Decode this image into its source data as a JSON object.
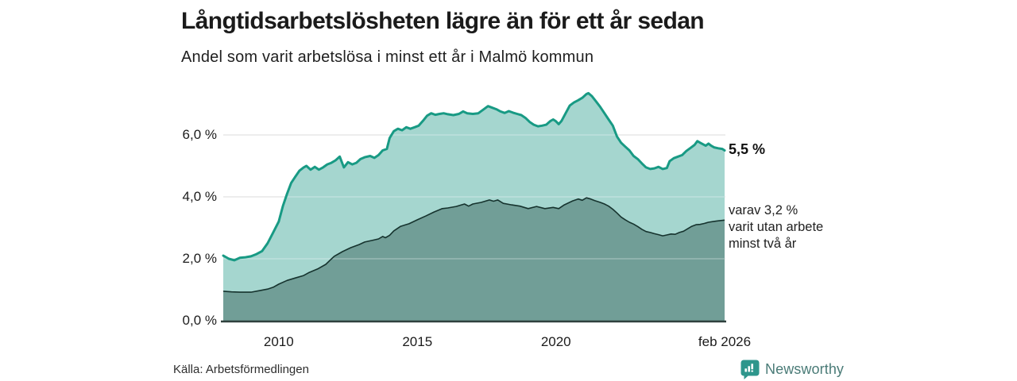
{
  "header": {
    "title": "Långtidsarbetslösheten lägre än för ett år sedan",
    "subtitle": "Andel som varit arbetslösa i minst ett år i Malmö kommun"
  },
  "annotations": {
    "end_total": "5,5 %",
    "end_sub_lines": [
      "varav 3,2 %",
      "varit utan arbete",
      "minst två år"
    ]
  },
  "footer": {
    "source": "Källa: Arbetsförmedlingen",
    "brand": "Newsworthy"
  },
  "colors": {
    "line_total": "#189a84",
    "fill_total": "#a5d6cf",
    "line_two_year": "#16332e",
    "fill_two_year": "#719e97",
    "grid": "#d8d8d8",
    "grid_over_fill": "rgba(255,255,255,0.35)",
    "axis": "#2f403d",
    "brand_teal": "#2e968c",
    "brand_text": "#4a7b77"
  },
  "chart_data": {
    "type": "area",
    "title": "Långtidsarbetslösheten lägre än för ett år sedan",
    "subtitle": "Andel som varit arbetslösa i minst ett år i Malmö kommun",
    "source": "Källa: Arbetsförmedlingen",
    "xlim": [
      2008.0,
      2026.083
    ],
    "ylim": [
      0,
      7.6
    ],
    "grid": true,
    "legend": "none",
    "x_ticks": [
      {
        "x": 2010,
        "label": "2010"
      },
      {
        "x": 2015,
        "label": "2015"
      },
      {
        "x": 2020,
        "label": "2020"
      },
      {
        "x": 2026.083,
        "label": "feb 2026"
      }
    ],
    "y_ticks": [
      {
        "y": 0,
        "label": "0,0 %"
      },
      {
        "y": 2,
        "label": "2,0 %"
      },
      {
        "y": 4,
        "label": "4,0 %"
      },
      {
        "y": 6,
        "label": "6,0 %"
      }
    ],
    "series": [
      {
        "name": "Andel arbetslösa minst ett år",
        "end_value": 5.5,
        "end_label": "5,5 %",
        "points": [
          [
            2008.0,
            2.1
          ],
          [
            2008.2,
            2.0
          ],
          [
            2008.4,
            1.95
          ],
          [
            2008.6,
            2.03
          ],
          [
            2008.8,
            2.05
          ],
          [
            2009.0,
            2.08
          ],
          [
            2009.2,
            2.15
          ],
          [
            2009.4,
            2.25
          ],
          [
            2009.6,
            2.5
          ],
          [
            2009.8,
            2.85
          ],
          [
            2010.0,
            3.2
          ],
          [
            2010.15,
            3.7
          ],
          [
            2010.3,
            4.1
          ],
          [
            2010.45,
            4.45
          ],
          [
            2010.6,
            4.65
          ],
          [
            2010.75,
            4.85
          ],
          [
            2010.9,
            4.95
          ],
          [
            2011.0,
            5.0
          ],
          [
            2011.15,
            4.88
          ],
          [
            2011.3,
            4.97
          ],
          [
            2011.45,
            4.88
          ],
          [
            2011.6,
            4.95
          ],
          [
            2011.75,
            5.05
          ],
          [
            2011.9,
            5.1
          ],
          [
            2012.05,
            5.18
          ],
          [
            2012.2,
            5.3
          ],
          [
            2012.35,
            4.95
          ],
          [
            2012.5,
            5.12
          ],
          [
            2012.65,
            5.05
          ],
          [
            2012.8,
            5.1
          ],
          [
            2012.95,
            5.22
          ],
          [
            2013.1,
            5.28
          ],
          [
            2013.3,
            5.32
          ],
          [
            2013.45,
            5.26
          ],
          [
            2013.6,
            5.35
          ],
          [
            2013.75,
            5.5
          ],
          [
            2013.9,
            5.55
          ],
          [
            2014.0,
            5.9
          ],
          [
            2014.15,
            6.12
          ],
          [
            2014.3,
            6.2
          ],
          [
            2014.45,
            6.15
          ],
          [
            2014.6,
            6.25
          ],
          [
            2014.75,
            6.2
          ],
          [
            2014.9,
            6.25
          ],
          [
            2015.05,
            6.3
          ],
          [
            2015.2,
            6.45
          ],
          [
            2015.35,
            6.62
          ],
          [
            2015.5,
            6.7
          ],
          [
            2015.65,
            6.65
          ],
          [
            2015.8,
            6.68
          ],
          [
            2015.95,
            6.7
          ],
          [
            2016.1,
            6.67
          ],
          [
            2016.3,
            6.64
          ],
          [
            2016.5,
            6.68
          ],
          [
            2016.65,
            6.76
          ],
          [
            2016.8,
            6.7
          ],
          [
            2017.0,
            6.68
          ],
          [
            2017.2,
            6.7
          ],
          [
            2017.4,
            6.83
          ],
          [
            2017.55,
            6.93
          ],
          [
            2017.7,
            6.88
          ],
          [
            2017.85,
            6.83
          ],
          [
            2018.0,
            6.76
          ],
          [
            2018.15,
            6.71
          ],
          [
            2018.3,
            6.77
          ],
          [
            2018.45,
            6.72
          ],
          [
            2018.6,
            6.68
          ],
          [
            2018.75,
            6.64
          ],
          [
            2018.9,
            6.55
          ],
          [
            2019.05,
            6.42
          ],
          [
            2019.2,
            6.33
          ],
          [
            2019.35,
            6.28
          ],
          [
            2019.5,
            6.3
          ],
          [
            2019.65,
            6.33
          ],
          [
            2019.8,
            6.45
          ],
          [
            2019.9,
            6.5
          ],
          [
            2020.0,
            6.44
          ],
          [
            2020.1,
            6.35
          ],
          [
            2020.2,
            6.45
          ],
          [
            2020.35,
            6.7
          ],
          [
            2020.5,
            6.95
          ],
          [
            2020.65,
            7.05
          ],
          [
            2020.8,
            7.12
          ],
          [
            2020.95,
            7.2
          ],
          [
            2021.1,
            7.32
          ],
          [
            2021.17,
            7.35
          ],
          [
            2021.3,
            7.25
          ],
          [
            2021.45,
            7.08
          ],
          [
            2021.6,
            6.9
          ],
          [
            2021.75,
            6.7
          ],
          [
            2021.9,
            6.5
          ],
          [
            2022.05,
            6.3
          ],
          [
            2022.2,
            5.95
          ],
          [
            2022.35,
            5.75
          ],
          [
            2022.5,
            5.62
          ],
          [
            2022.65,
            5.5
          ],
          [
            2022.8,
            5.32
          ],
          [
            2022.95,
            5.22
          ],
          [
            2023.1,
            5.08
          ],
          [
            2023.25,
            4.95
          ],
          [
            2023.4,
            4.9
          ],
          [
            2023.55,
            4.92
          ],
          [
            2023.7,
            4.97
          ],
          [
            2023.85,
            4.9
          ],
          [
            2024.0,
            4.93
          ],
          [
            2024.1,
            5.15
          ],
          [
            2024.25,
            5.25
          ],
          [
            2024.4,
            5.3
          ],
          [
            2024.55,
            5.35
          ],
          [
            2024.7,
            5.48
          ],
          [
            2024.85,
            5.58
          ],
          [
            2025.0,
            5.68
          ],
          [
            2025.1,
            5.8
          ],
          [
            2025.2,
            5.75
          ],
          [
            2025.3,
            5.7
          ],
          [
            2025.4,
            5.65
          ],
          [
            2025.5,
            5.72
          ],
          [
            2025.6,
            5.65
          ],
          [
            2025.7,
            5.6
          ],
          [
            2025.85,
            5.57
          ],
          [
            2026.0,
            5.55
          ],
          [
            2026.083,
            5.5
          ]
        ]
      },
      {
        "name": "varav utan arbete minst två år",
        "end_value": 3.2,
        "end_label": "varav 3,2 % varit utan arbete minst två år",
        "points": [
          [
            2008.0,
            0.95
          ],
          [
            2008.3,
            0.93
          ],
          [
            2008.6,
            0.92
          ],
          [
            2009.0,
            0.92
          ],
          [
            2009.3,
            0.97
          ],
          [
            2009.6,
            1.02
          ],
          [
            2009.8,
            1.08
          ],
          [
            2010.0,
            1.18
          ],
          [
            2010.3,
            1.3
          ],
          [
            2010.6,
            1.38
          ],
          [
            2010.9,
            1.46
          ],
          [
            2011.1,
            1.56
          ],
          [
            2011.4,
            1.67
          ],
          [
            2011.7,
            1.82
          ],
          [
            2011.85,
            1.95
          ],
          [
            2012.0,
            2.08
          ],
          [
            2012.3,
            2.23
          ],
          [
            2012.6,
            2.36
          ],
          [
            2012.9,
            2.46
          ],
          [
            2013.1,
            2.54
          ],
          [
            2013.4,
            2.6
          ],
          [
            2013.6,
            2.64
          ],
          [
            2013.75,
            2.72
          ],
          [
            2013.85,
            2.68
          ],
          [
            2014.0,
            2.76
          ],
          [
            2014.15,
            2.9
          ],
          [
            2014.4,
            3.05
          ],
          [
            2014.7,
            3.13
          ],
          [
            2015.0,
            3.26
          ],
          [
            2015.3,
            3.38
          ],
          [
            2015.6,
            3.51
          ],
          [
            2015.9,
            3.62
          ],
          [
            2016.1,
            3.64
          ],
          [
            2016.4,
            3.69
          ],
          [
            2016.7,
            3.77
          ],
          [
            2016.85,
            3.7
          ],
          [
            2017.0,
            3.77
          ],
          [
            2017.3,
            3.82
          ],
          [
            2017.6,
            3.9
          ],
          [
            2017.75,
            3.86
          ],
          [
            2017.9,
            3.9
          ],
          [
            2018.1,
            3.79
          ],
          [
            2018.4,
            3.74
          ],
          [
            2018.7,
            3.7
          ],
          [
            2019.0,
            3.62
          ],
          [
            2019.3,
            3.69
          ],
          [
            2019.6,
            3.62
          ],
          [
            2019.9,
            3.66
          ],
          [
            2020.1,
            3.62
          ],
          [
            2020.3,
            3.74
          ],
          [
            2020.6,
            3.87
          ],
          [
            2020.8,
            3.93
          ],
          [
            2020.95,
            3.89
          ],
          [
            2021.1,
            3.97
          ],
          [
            2021.25,
            3.93
          ],
          [
            2021.4,
            3.88
          ],
          [
            2021.6,
            3.82
          ],
          [
            2021.75,
            3.77
          ],
          [
            2021.9,
            3.7
          ],
          [
            2022.05,
            3.6
          ],
          [
            2022.2,
            3.48
          ],
          [
            2022.35,
            3.35
          ],
          [
            2022.5,
            3.26
          ],
          [
            2022.65,
            3.18
          ],
          [
            2022.8,
            3.12
          ],
          [
            2022.95,
            3.04
          ],
          [
            2023.1,
            2.95
          ],
          [
            2023.25,
            2.88
          ],
          [
            2023.4,
            2.85
          ],
          [
            2023.55,
            2.81
          ],
          [
            2023.7,
            2.78
          ],
          [
            2023.85,
            2.74
          ],
          [
            2024.0,
            2.77
          ],
          [
            2024.15,
            2.8
          ],
          [
            2024.3,
            2.79
          ],
          [
            2024.45,
            2.85
          ],
          [
            2024.6,
            2.89
          ],
          [
            2024.75,
            2.97
          ],
          [
            2024.9,
            3.05
          ],
          [
            2025.05,
            3.1
          ],
          [
            2025.2,
            3.11
          ],
          [
            2025.35,
            3.14
          ],
          [
            2025.5,
            3.18
          ],
          [
            2025.65,
            3.2
          ],
          [
            2025.8,
            3.22
          ],
          [
            2026.083,
            3.25
          ]
        ]
      }
    ]
  }
}
